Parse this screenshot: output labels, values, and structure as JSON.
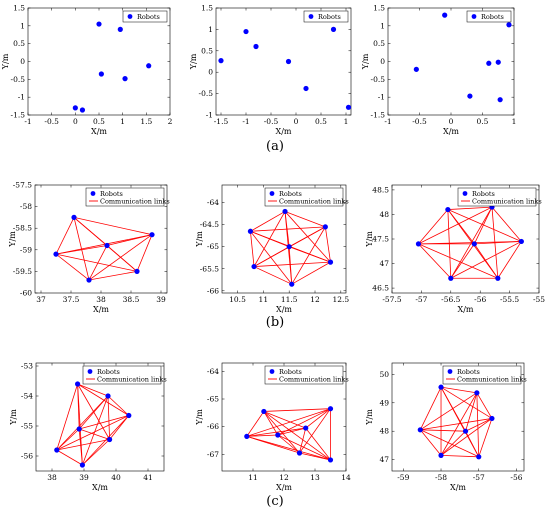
{
  "colors": {
    "point": "#0000ff",
    "link": "#ff0000",
    "axis": "#000000"
  },
  "panel_labels": [
    "(a)",
    "(b)",
    "(c)"
  ],
  "chart_data": [
    {
      "type": "scatter",
      "xlabel": "X/m",
      "ylabel": "Y/m",
      "xlim": [
        -1,
        2
      ],
      "ylim": [
        -1.5,
        1.5
      ],
      "xticks": [
        "-1",
        "-0.5",
        "0",
        "0.5",
        "1",
        "1.5",
        "2"
      ],
      "yticks": [
        "-1.5",
        "-1",
        "-0.5",
        "0",
        "0.5",
        "1",
        "1.5"
      ],
      "legend": [
        "Robots"
      ],
      "series": [
        {
          "name": "Robots",
          "x": [
            0.5,
            0.95,
            0.55,
            1.05,
            1.55,
            0.0,
            0.15
          ],
          "y": [
            1.05,
            0.9,
            -0.35,
            -0.48,
            -0.12,
            -1.3,
            -1.36
          ]
        }
      ],
      "links": false
    },
    {
      "type": "scatter",
      "xlabel": "X/m",
      "ylabel": "Y/m",
      "xlim": [
        -1.6,
        1.1
      ],
      "ylim": [
        -1.0,
        1.5
      ],
      "xticks": [
        "-1.5",
        "-1",
        "-0.5",
        "0",
        "0.5",
        "1"
      ],
      "yticks": [
        "-1",
        "-0.5",
        "0",
        "0.5",
        "1",
        "1.5"
      ],
      "legend": [
        "Robots"
      ],
      "series": [
        {
          "name": "Robots",
          "x": [
            -1.5,
            -1.0,
            -0.8,
            -0.15,
            0.2,
            0.75,
            1.05
          ],
          "y": [
            0.27,
            0.95,
            0.6,
            0.25,
            -0.38,
            1.0,
            -0.82
          ]
        }
      ],
      "links": false
    },
    {
      "type": "scatter",
      "xlabel": "X/m",
      "ylabel": "Y/m",
      "xlim": [
        -1,
        1
      ],
      "ylim": [
        -1.5,
        1.5
      ],
      "xticks": [
        "-1",
        "-0.5",
        "0",
        "0.5",
        "1"
      ],
      "yticks": [
        "-1.5",
        "-1",
        "-0.5",
        "0",
        "0.5",
        "1",
        "1.5"
      ],
      "legend": [
        "Robots"
      ],
      "series": [
        {
          "name": "Robots",
          "x": [
            -0.55,
            -0.1,
            0.3,
            0.6,
            0.75,
            0.78,
            0.92
          ],
          "y": [
            -0.22,
            1.3,
            -0.97,
            -0.05,
            -0.02,
            -1.07,
            1.03
          ]
        }
      ],
      "links": false
    },
    {
      "type": "scatter",
      "xlabel": "X/m",
      "ylabel": "Y/m",
      "xlim": [
        36.9,
        39.1
      ],
      "ylim": [
        -60.0,
        -57.5
      ],
      "xticks": [
        "37",
        "37.5",
        "38",
        "38.5",
        "39"
      ],
      "yticks": [
        "-60",
        "-59.5",
        "-59",
        "-58.5",
        "-58",
        "-57.5"
      ],
      "legend": [
        "Robots",
        "Communication links"
      ],
      "series": [
        {
          "name": "Robots",
          "x": [
            37.25,
            37.55,
            38.1,
            38.85,
            37.8,
            38.6
          ],
          "y": [
            -59.1,
            -58.25,
            -58.9,
            -58.65,
            -59.7,
            -59.5
          ]
        }
      ],
      "links": true
    },
    {
      "type": "scatter",
      "xlabel": "X/m",
      "ylabel": "Y/m",
      "xlim": [
        10.2,
        12.6
      ],
      "ylim": [
        -66.05,
        -63.6
      ],
      "xticks": [
        "10.5",
        "11",
        "11.5",
        "12",
        "12.5"
      ],
      "yticks": [
        "-66",
        "-65.5",
        "-65",
        "-64.5",
        "-64"
      ],
      "legend": [
        "Robots",
        "Communication links"
      ],
      "series": [
        {
          "name": "Robots",
          "x": [
            10.75,
            10.82,
            11.42,
            11.5,
            11.55,
            12.2,
            12.3
          ],
          "y": [
            -64.65,
            -65.45,
            -64.2,
            -65.0,
            -65.85,
            -64.55,
            -65.35
          ]
        }
      ],
      "links": true
    },
    {
      "type": "scatter",
      "xlabel": "X/m",
      "ylabel": "Y/m",
      "xlim": [
        -57.5,
        -55.0
      ],
      "ylim": [
        46.4,
        48.6
      ],
      "xticks": [
        "-57.5",
        "-57",
        "-56.5",
        "-56",
        "-55.5",
        "-55"
      ],
      "yticks": [
        "46.5",
        "47",
        "47.5",
        "48",
        "48.5"
      ],
      "legend": [
        "Robots",
        "Communication links"
      ],
      "series": [
        {
          "name": "Robots",
          "x": [
            -57.05,
            -56.55,
            -56.5,
            -56.1,
            -55.8,
            -55.7,
            -55.3
          ],
          "y": [
            47.4,
            48.1,
            46.7,
            47.4,
            48.15,
            46.7,
            47.45
          ]
        }
      ],
      "links": true
    },
    {
      "type": "scatter",
      "xlabel": "X/m",
      "ylabel": "Y/m",
      "xlim": [
        37.5,
        41.5
      ],
      "ylim": [
        -56.5,
        -52.9
      ],
      "xticks": [
        "38",
        "39",
        "40",
        "41"
      ],
      "yticks": [
        "-56",
        "-55",
        "-54",
        "-53"
      ],
      "legend": [
        "Robots",
        "Communication links"
      ],
      "series": [
        {
          "name": "Robots",
          "x": [
            38.15,
            38.8,
            38.85,
            38.95,
            39.75,
            39.8,
            40.4
          ],
          "y": [
            -55.8,
            -53.6,
            -55.1,
            -56.3,
            -54.0,
            -55.45,
            -54.65
          ]
        }
      ],
      "links": true
    },
    {
      "type": "scatter",
      "xlabel": "X/m",
      "ylabel": "Y/m",
      "xlim": [
        10,
        14
      ],
      "ylim": [
        -67.6,
        -63.7
      ],
      "xticks": [
        "11",
        "12",
        "13",
        "14"
      ],
      "yticks": [
        "-67",
        "-66",
        "-65",
        "-64"
      ],
      "legend": [
        "Robots",
        "Communication links"
      ],
      "series": [
        {
          "name": "Robots",
          "x": [
            10.8,
            11.35,
            11.8,
            12.5,
            12.7,
            13.5,
            13.5
          ],
          "y": [
            -66.35,
            -65.45,
            -66.3,
            -66.95,
            -66.05,
            -65.35,
            -67.2
          ]
        }
      ],
      "links": true
    },
    {
      "type": "scatter",
      "xlabel": "X/m",
      "ylabel": "Y/m",
      "xlim": [
        -59.3,
        -55.8
      ],
      "ylim": [
        46.6,
        50.4
      ],
      "xticks": [
        "-59",
        "-58",
        "-57",
        "-56"
      ],
      "yticks": [
        "47",
        "48",
        "49",
        "50"
      ],
      "legend": [
        "Robots",
        "Communication links"
      ],
      "series": [
        {
          "name": "Robots",
          "x": [
            -58.55,
            -58.0,
            -58.0,
            -57.35,
            -57.05,
            -57.0,
            -56.65
          ],
          "y": [
            48.05,
            49.55,
            47.15,
            48.0,
            49.35,
            47.1,
            48.45
          ]
        }
      ],
      "links": true
    }
  ]
}
